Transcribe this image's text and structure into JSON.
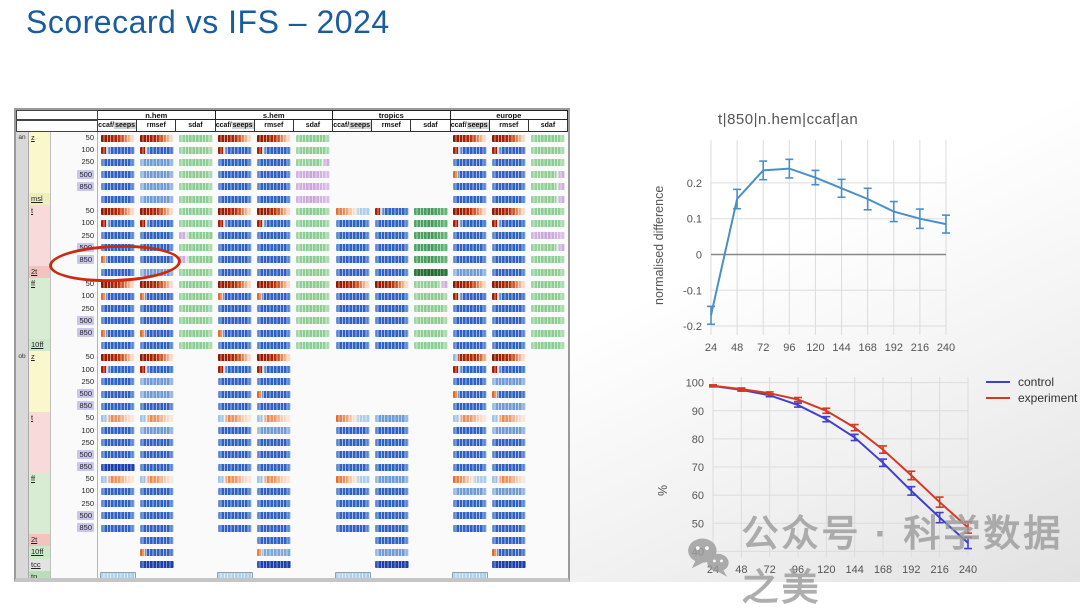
{
  "slide": {
    "title": "Scorecard vs IFS – 2024",
    "title_color": "#1a5c9e"
  },
  "scorecard": {
    "regions": [
      "n.hem",
      "s.hem",
      "tropics",
      "europe"
    ],
    "metrics": [
      "ccaf/seeps",
      "rmsef",
      "sdaf"
    ],
    "sections": [
      "an",
      "ob"
    ],
    "highlight": {
      "shape": "ellipse",
      "row": "t 850",
      "region": "n.hem",
      "color": "#cc2a10"
    },
    "rows": [
      {
        "sec": "an",
        "v": "z",
        "l": "50",
        "bg": "y",
        "c": [
          "r",
          "r",
          "g",
          "r",
          "r",
          "g",
          "",
          "",
          "",
          "r",
          "r",
          "g"
        ]
      },
      {
        "l": "100",
        "bg": "y",
        "c": [
          "rb",
          "rb",
          "g",
          "rb",
          "rb",
          "g",
          "",
          "",
          "",
          "rb",
          "rb",
          "g"
        ]
      },
      {
        "l": "250",
        "bg": "y",
        "c": [
          "b",
          "bl",
          "g",
          "b",
          "b",
          "gp",
          "",
          "",
          "",
          "b",
          "b",
          "g"
        ]
      },
      {
        "l": "500",
        "bg": "y",
        "c": [
          "b",
          "bl",
          "g",
          "b",
          "b",
          "p",
          "",
          "",
          "",
          "ob",
          "b",
          "gp"
        ]
      },
      {
        "l": "850",
        "bg": "y",
        "c": [
          "b",
          "bl",
          "g",
          "b",
          "b",
          "p",
          "",
          "",
          "",
          "b",
          "b",
          "gp"
        ]
      },
      {
        "v": "msl",
        "bg": "ym",
        "c": [
          "b",
          "bl",
          "g",
          "b",
          "b",
          "p",
          "",
          "",
          "",
          "b",
          "b",
          "gp"
        ]
      },
      {
        "v": "t",
        "l": "50",
        "bg": "t",
        "c": [
          "r",
          "r",
          "g",
          "r",
          "r",
          "g",
          "orl",
          "rb",
          "gm",
          "r",
          "r",
          "g"
        ]
      },
      {
        "l": "100",
        "bg": "t",
        "c": [
          "rb",
          "rb",
          "g",
          "rb",
          "rb",
          "g",
          "b",
          "b",
          "gm",
          "rb",
          "rb",
          "g"
        ]
      },
      {
        "l": "250",
        "bg": "t",
        "c": [
          "b",
          "b",
          "pg",
          "b",
          "b",
          "g",
          "b",
          "b",
          "gm",
          "b",
          "b",
          "p"
        ]
      },
      {
        "l": "500",
        "bg": "t",
        "c": [
          "b",
          "b",
          "g",
          "b",
          "b",
          "g",
          "b",
          "b",
          "gm",
          "b",
          "b",
          "gp"
        ]
      },
      {
        "l": "850",
        "bg": "t",
        "c": [
          "ob",
          "b",
          "pg",
          "b",
          "b",
          "g",
          "b",
          "b",
          "gm",
          "b",
          "b",
          "g"
        ]
      },
      {
        "v": "2t",
        "bg": "t2",
        "c": [
          "b",
          "bl",
          "g",
          "b",
          "b",
          "g",
          "b",
          "b",
          "gd",
          "bl",
          "b",
          "g"
        ]
      },
      {
        "v": "ff",
        "l": "50",
        "bg": "f",
        "c": [
          "r",
          "r",
          "g",
          "r",
          "r",
          "g",
          "r",
          "r",
          "gp",
          "r",
          "r",
          "g"
        ]
      },
      {
        "l": "100",
        "bg": "f",
        "c": [
          "ob",
          "ob",
          "g",
          "ob",
          "ob",
          "g",
          "b",
          "b",
          "g",
          "rb",
          "rb",
          "g"
        ]
      },
      {
        "l": "250",
        "bg": "f",
        "c": [
          "b",
          "b",
          "g",
          "b",
          "b",
          "g",
          "b",
          "b",
          "g",
          "b",
          "b",
          "g"
        ]
      },
      {
        "l": "500",
        "bg": "f",
        "c": [
          "b",
          "b",
          "g",
          "b",
          "b",
          "g",
          "b",
          "b",
          "g",
          "b",
          "b",
          "g"
        ]
      },
      {
        "l": "850",
        "bg": "f",
        "c": [
          "ob",
          "ob",
          "g",
          "ob",
          "b",
          "g",
          "b",
          "b",
          "g",
          "b",
          "b",
          "g"
        ]
      },
      {
        "v": "10ff",
        "bg": "f2",
        "c": [
          "b",
          "b",
          "g",
          "b",
          "b",
          "g",
          "b",
          "b",
          "g",
          "b",
          "b",
          "g"
        ]
      },
      {
        "sec": "ob",
        "v": "z",
        "l": "50",
        "bg": "y",
        "c": [
          "r",
          "r",
          "",
          "r",
          "r",
          "",
          "",
          "",
          "",
          "br",
          "r",
          ""
        ]
      },
      {
        "l": "100",
        "bg": "y",
        "c": [
          "rb",
          "rb",
          "",
          "rb",
          "rb",
          "",
          "",
          "",
          "",
          "rb",
          "rb",
          ""
        ]
      },
      {
        "l": "250",
        "bg": "y",
        "c": [
          "b",
          "bl",
          "",
          "b",
          "b",
          "",
          "",
          "",
          "",
          "b",
          "bl",
          ""
        ]
      },
      {
        "l": "500",
        "bg": "y",
        "c": [
          "b",
          "bl",
          "",
          "b",
          "ob",
          "",
          "",
          "",
          "",
          "ob",
          "ob",
          ""
        ]
      },
      {
        "l": "850",
        "bg": "y",
        "c": [
          "b",
          "b",
          "",
          "b",
          "b",
          "",
          "",
          "",
          "",
          "b",
          "bl",
          ""
        ]
      },
      {
        "v": "t",
        "l": "50",
        "bg": "t",
        "c": [
          "lor",
          "lor",
          "",
          "lor",
          "lor",
          "",
          "orl",
          "bl",
          "",
          "lor",
          "lor",
          ""
        ]
      },
      {
        "l": "100",
        "bg": "t",
        "c": [
          "b",
          "bl",
          "",
          "b",
          "bl",
          "",
          "b",
          "b",
          "",
          "b",
          "bl",
          ""
        ]
      },
      {
        "l": "250",
        "bg": "t",
        "c": [
          "b",
          "b",
          "",
          "b",
          "b",
          "",
          "b",
          "b",
          "",
          "b",
          "b",
          ""
        ]
      },
      {
        "l": "500",
        "bg": "t",
        "c": [
          "b",
          "b",
          "",
          "b",
          "b",
          "",
          "b",
          "b",
          "",
          "b",
          "b",
          ""
        ]
      },
      {
        "l": "850",
        "bg": "t",
        "c": [
          "bd",
          "b",
          "",
          "b",
          "b",
          "",
          "b",
          "b",
          "",
          "b",
          "b",
          ""
        ]
      },
      {
        "v": "ff",
        "l": "50",
        "bg": "f",
        "c": [
          "lor",
          "lor",
          "",
          "lor",
          "lor",
          "",
          "orl",
          "bl",
          "",
          "orl",
          "lor",
          ""
        ]
      },
      {
        "l": "100",
        "bg": "f",
        "c": [
          "b",
          "b",
          "",
          "b",
          "b",
          "",
          "b",
          "b",
          "",
          "bl",
          "bl",
          ""
        ]
      },
      {
        "l": "250",
        "bg": "f",
        "c": [
          "b",
          "b",
          "",
          "b",
          "b",
          "",
          "b",
          "b",
          "",
          "b",
          "b",
          ""
        ]
      },
      {
        "l": "500",
        "bg": "f",
        "c": [
          "b",
          "b",
          "",
          "b",
          "b",
          "",
          "b",
          "b",
          "",
          "b",
          "b",
          ""
        ]
      },
      {
        "l": "850",
        "bg": "f",
        "c": [
          "b",
          "b",
          "",
          "b",
          "b",
          "",
          "b",
          "b",
          "",
          "b",
          "b",
          ""
        ]
      },
      {
        "v": "2t",
        "bg": "t2",
        "c": [
          "",
          "b",
          "",
          "",
          "b",
          "",
          "",
          "b",
          "",
          "",
          "b",
          ""
        ]
      },
      {
        "v": "10ff",
        "bg": "f2",
        "c": [
          "",
          "ob",
          "",
          "",
          "obl",
          "",
          "",
          "bl",
          "",
          "",
          "ob",
          ""
        ]
      },
      {
        "v": "tcc",
        "bg": "tc",
        "c": [
          "",
          "bd",
          "",
          "",
          "bd",
          "",
          "",
          "bd",
          "",
          "",
          "bd",
          ""
        ]
      },
      {
        "v": "tp",
        "bg": "tp",
        "c": [
          "tp",
          "",
          "",
          "tp",
          "",
          "",
          "tp",
          "",
          "",
          "tp",
          "",
          ""
        ]
      }
    ]
  },
  "chart_data": [
    {
      "type": "line",
      "title": "t|850|n.hem|ccaf|an",
      "xlabel": "",
      "ylabel": "normalised difference",
      "x": [
        24,
        48,
        72,
        96,
        120,
        144,
        168,
        192,
        216,
        240
      ],
      "yticks": [
        -0.2,
        -0.1,
        0,
        0.1,
        0.2
      ],
      "ylim": [
        -0.225,
        0.32
      ],
      "grid": true,
      "zero_line": true,
      "series": [
        {
          "name": "ccaf",
          "color": "#4a90c8",
          "values": [
            -0.17,
            0.155,
            0.235,
            0.24,
            0.215,
            0.185,
            0.155,
            0.12,
            0.1,
            0.085
          ],
          "errors": [
            0.025,
            0.027,
            0.026,
            0.026,
            0.02,
            0.025,
            0.03,
            0.028,
            0.027,
            0.025
          ]
        }
      ]
    },
    {
      "type": "line",
      "title": "",
      "xlabel": "",
      "ylabel": "%",
      "x": [
        24,
        48,
        72,
        96,
        120,
        144,
        168,
        192,
        216,
        240
      ],
      "yticks": [
        40,
        50,
        60,
        70,
        80,
        90,
        100
      ],
      "ylim": [
        38,
        102
      ],
      "grid": true,
      "zero_line": false,
      "legend_position": "top-right",
      "series": [
        {
          "name": "control",
          "color": "#4040cf",
          "values": [
            98.8,
            97.4,
            95.5,
            92.0,
            87.0,
            80.5,
            71.5,
            61.5,
            52.0,
            43.0
          ],
          "errors": [
            0.3,
            0.4,
            0.5,
            0.7,
            0.9,
            1.1,
            1.3,
            1.5,
            1.8,
            2.0
          ]
        },
        {
          "name": "experiment",
          "color": "#d23a28",
          "values": [
            98.9,
            97.7,
            96.2,
            94.0,
            90.0,
            84.0,
            76.2,
            67.0,
            57.5,
            48.5
          ],
          "errors": [
            0.3,
            0.4,
            0.5,
            0.7,
            0.9,
            1.1,
            1.3,
            1.5,
            1.8,
            2.0
          ]
        }
      ]
    }
  ],
  "watermark": {
    "icon": "wechat-icon",
    "text": "公众号 · 科学数据之美"
  }
}
